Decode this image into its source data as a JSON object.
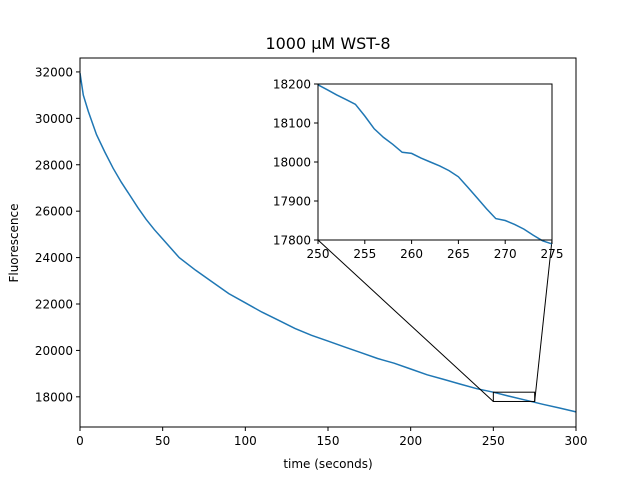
{
  "chart_data": [
    {
      "type": "line",
      "title": "1000 µM WST-8",
      "xlabel": "time (seconds)",
      "ylabel": "Fluorescence",
      "xlim": [
        0,
        300
      ],
      "ylim": [
        16700,
        32600
      ],
      "xticks": [
        0,
        50,
        100,
        150,
        200,
        250,
        300
      ],
      "yticks": [
        18000,
        20000,
        22000,
        24000,
        26000,
        28000,
        30000,
        32000
      ],
      "grid": false,
      "series": [
        {
          "color": "#1f77b4",
          "x": [
            0,
            2,
            5,
            10,
            15,
            20,
            25,
            30,
            35,
            40,
            45,
            50,
            60,
            70,
            80,
            90,
            100,
            110,
            120,
            130,
            140,
            150,
            160,
            170,
            180,
            190,
            200,
            210,
            220,
            230,
            240,
            250,
            260,
            270,
            280,
            290,
            300
          ],
          "y": [
            31950,
            31000,
            30300,
            29300,
            28550,
            27850,
            27250,
            26700,
            26150,
            25650,
            25200,
            24800,
            24000,
            23450,
            22950,
            22450,
            22050,
            21650,
            21300,
            20950,
            20650,
            20400,
            20150,
            19900,
            19650,
            19450,
            19200,
            18950,
            18750,
            18550,
            18350,
            18200,
            18020,
            17850,
            17680,
            17520,
            17350
          ]
        }
      ]
    },
    {
      "type": "line",
      "title": "",
      "xlabel": "",
      "ylabel": "",
      "xlim": [
        250,
        275
      ],
      "ylim": [
        17800,
        18200
      ],
      "xticks": [
        250,
        255,
        260,
        265,
        270,
        275
      ],
      "yticks": [
        17800,
        17900,
        18000,
        18100,
        18200
      ],
      "grid": false,
      "series": [
        {
          "color": "#1f77b4",
          "x": [
            250,
            251,
            252,
            253,
            254,
            255,
            256,
            257,
            258,
            259,
            260,
            261,
            262,
            263,
            264,
            265,
            266,
            267,
            268,
            269,
            270,
            271,
            272,
            273,
            274,
            275
          ],
          "y": [
            18198,
            18185,
            18172,
            18160,
            18148,
            18118,
            18085,
            18063,
            18045,
            18025,
            18022,
            18010,
            18000,
            17990,
            17978,
            17962,
            17935,
            17908,
            17880,
            17855,
            17850,
            17840,
            17828,
            17812,
            17798,
            17790
          ]
        }
      ]
    }
  ]
}
